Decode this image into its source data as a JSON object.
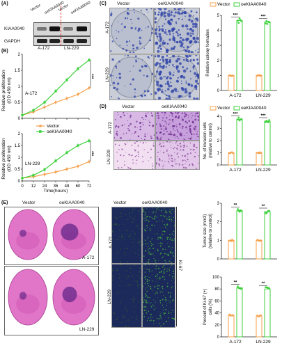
{
  "colors": {
    "vector": "#f5a04a",
    "oe": "#3cd13c",
    "plate_bg": "#c8cdd8",
    "colony": "#2b3fa8",
    "he_pink": "#e176c8",
    "he_purple": "#6b2a8c",
    "ki67_bg": "#1b2a5a"
  },
  "panelA": {
    "label": "(A)",
    "lanes": [
      "Vector",
      "oeKIAA0040",
      "Vector",
      "oeKIAA0040"
    ],
    "rows": [
      "KIAA0040",
      "GAPDH"
    ],
    "groups": [
      "A-172",
      "LN-229"
    ]
  },
  "panelB": {
    "label": "(B)",
    "legend": [
      "Vector",
      "oeKIAA0040"
    ],
    "ylabel": "Relative proliferation (OD 450 nm)",
    "xlabel": "Time(hours)",
    "sig": "***",
    "plots": [
      {
        "title": "A-172"
      },
      {
        "title": "LN-229"
      }
    ]
  },
  "panelC": {
    "label": "(C)",
    "cols": [
      "Vector",
      "oeKIAA0040"
    ],
    "rows": [
      "A-172",
      "LN-229"
    ],
    "legend": [
      "Vector",
      "oeKIAA0040"
    ]
  },
  "panelD": {
    "label": "(D)",
    "cols": [
      "Vector",
      "oeKIAA0040"
    ],
    "rows": [
      "A-172",
      "LN-229"
    ],
    "legend": [
      "Vector",
      "oeKIAA0040"
    ]
  },
  "panelE": {
    "label": "(E)",
    "cols": [
      "Vector",
      "oeKIAA0040"
    ],
    "rows": [
      "A-172",
      "LN-229"
    ],
    "ki67_cols": [
      "Vector",
      "oeKIAA0040"
    ],
    "ki67_rows": [
      "A-172",
      "LN-229"
    ],
    "ki67_side": "Ki-67"
  },
  "chart_data": [
    {
      "id": "B1",
      "type": "line",
      "title": "A-172",
      "x": [
        0,
        12,
        24,
        36,
        48,
        60,
        72
      ],
      "xlabel": "",
      "ylabel": "Relative proliferation (OD 450 nm)",
      "ylim": [
        0,
        2.0
      ],
      "yticks": [
        0,
        0.5,
        1.0,
        1.5,
        2.0
      ],
      "xticks": [],
      "series": [
        {
          "name": "Vector",
          "values": [
            0.1,
            0.2,
            0.35,
            0.5,
            0.62,
            0.75,
            0.95
          ]
        },
        {
          "name": "oeKIAA0040",
          "values": [
            0.1,
            0.25,
            0.5,
            0.85,
            1.2,
            1.55,
            1.82
          ]
        }
      ],
      "annotation": "***"
    },
    {
      "id": "B2",
      "type": "line",
      "title": "LN-229",
      "x": [
        0,
        12,
        24,
        36,
        48,
        60,
        72
      ],
      "xlabel": "Time(hours)",
      "ylabel": "Relative proliferation (OD 450 nm)",
      "ylim": [
        0,
        2.0
      ],
      "yticks": [
        0,
        0.5,
        1.0,
        1.5,
        2.0
      ],
      "xticks": [
        0,
        12,
        24,
        36,
        48,
        60,
        72
      ],
      "series": [
        {
          "name": "Vector",
          "values": [
            0.12,
            0.18,
            0.28,
            0.38,
            0.5,
            0.62,
            0.82
          ]
        },
        {
          "name": "oeKIAA0040",
          "values": [
            0.12,
            0.24,
            0.48,
            0.85,
            1.2,
            1.5,
            1.7
          ]
        }
      ],
      "annotation": "***"
    },
    {
      "id": "C",
      "type": "bar",
      "categories": [
        "A-172",
        "LN-229"
      ],
      "ylabel": "Relative colony formation",
      "ylim": [
        0,
        5
      ],
      "yticks": [
        0,
        1,
        2,
        3,
        4,
        5
      ],
      "series": [
        {
          "name": "Vector",
          "values": [
            1.0,
            1.0
          ]
        },
        {
          "name": "oeKIAA0040",
          "values": [
            4.65,
            4.55
          ]
        }
      ],
      "annotations": [
        "***",
        "***"
      ]
    },
    {
      "id": "D",
      "type": "bar",
      "categories": [
        "A-172",
        "LN-229"
      ],
      "ylabel": "No. of invasion cells (relative to control)",
      "ylim": [
        0,
        4
      ],
      "yticks": [
        0,
        1,
        2,
        3,
        4
      ],
      "series": [
        {
          "name": "Vector",
          "values": [
            1.0,
            1.0
          ]
        },
        {
          "name": "oeKIAA0040",
          "values": [
            3.75,
            3.6
          ]
        }
      ],
      "annotations": [
        "***",
        "***"
      ]
    },
    {
      "id": "E1",
      "type": "bar",
      "categories": [
        "A-172",
        "LN-229"
      ],
      "ylabel": "Tumor size (mm3) (relative to control)",
      "ylim": [
        0,
        3
      ],
      "yticks": [
        0,
        1,
        2,
        3
      ],
      "xticks_shown": false,
      "series": [
        {
          "name": "Vector",
          "values": [
            1.0,
            1.0
          ]
        },
        {
          "name": "oeKIAA0040",
          "values": [
            2.6,
            2.55
          ]
        }
      ],
      "annotations": [
        "**",
        "**"
      ]
    },
    {
      "id": "E2",
      "type": "bar",
      "categories": [
        "A-172",
        "LN-229"
      ],
      "ylabel": "Percent of Ki-67 (+) cells (%)",
      "ylim": [
        0,
        100
      ],
      "yticks": [
        0,
        20,
        40,
        60,
        80,
        100
      ],
      "series": [
        {
          "name": "Vector",
          "values": [
            36,
            35
          ]
        },
        {
          "name": "oeKIAA0040",
          "values": [
            82,
            80
          ]
        }
      ],
      "annotations": [
        "**",
        "**"
      ]
    }
  ]
}
